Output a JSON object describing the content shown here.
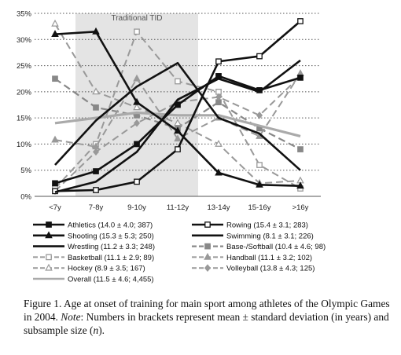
{
  "chart_data": {
    "type": "line",
    "title": "",
    "xlabel": "",
    "ylabel": "",
    "categories": [
      "<7y",
      "7-8y",
      "9-10y",
      "11-12y",
      "13-14y",
      "15-16y",
      ">16y"
    ],
    "ylim": [
      0,
      35
    ],
    "yticks": [
      "0%",
      "5%",
      "10%",
      "15%",
      "20%",
      "25%",
      "30%",
      "35%"
    ],
    "grid": "horizontal dotted",
    "annotation": "Traditional TID",
    "shaded_region": [
      "7-8y",
      "11-12y"
    ],
    "legend_position": "bottom",
    "series": [
      {
        "name": "Athletics (14.0 ± 4.0; 387)",
        "values": [
          2.5,
          4.8,
          10.0,
          17.5,
          23.0,
          20.3,
          22.7
        ],
        "color": "#111111",
        "width": 2.6,
        "dash": "none",
        "marker": "square-filled"
      },
      {
        "name": "Rowing (15.4 ± 3.1; 283)",
        "values": [
          1.0,
          1.2,
          2.8,
          9.0,
          25.8,
          26.8,
          33.5
        ],
        "color": "#111111",
        "width": 2.6,
        "dash": "none",
        "marker": "square-open"
      },
      {
        "name": "Shooting (15.3 ± 5.3; 250)",
        "values": [
          31.0,
          31.5,
          18.0,
          12.5,
          4.5,
          2.2,
          2.0
        ],
        "color": "#111111",
        "width": 2.6,
        "dash": "none",
        "marker": "triangle-filled"
      },
      {
        "name": "Swimming (8.1 ± 3.1; 226)",
        "values": [
          6.0,
          14.5,
          21.0,
          25.5,
          15.0,
          12.0,
          5.0
        ],
        "color": "#111111",
        "width": 2.6,
        "dash": "none",
        "marker": "none"
      },
      {
        "name": "Wrestling (11.2 ± 3.3; 248)",
        "values": [
          0.8,
          2.8,
          8.5,
          18.5,
          22.5,
          20.0,
          26.0
        ],
        "color": "#111111",
        "width": 2.6,
        "dash": "none",
        "marker": "none"
      },
      {
        "name": "Base-/Softball (10.4 ± 4.6; 98)",
        "values": [
          22.5,
          17.0,
          15.5,
          13.0,
          18.0,
          13.0,
          9.0
        ],
        "color": "#888888",
        "width": 2.2,
        "dash": "9 5",
        "marker": "square-filled"
      },
      {
        "name": "Basketball (11.1 ± 2.9; 89)",
        "values": [
          1.5,
          10.0,
          31.5,
          22.0,
          20.0,
          6.0,
          1.5
        ],
        "color": "#999999",
        "width": 2.0,
        "dash": "9 5",
        "marker": "square-open"
      },
      {
        "name": "Handball (11.1 ± 3.2; 102)",
        "values": [
          10.8,
          9.5,
          22.5,
          11.0,
          15.0,
          11.5,
          23.5
        ],
        "color": "#999999",
        "width": 2.0,
        "dash": "9 5",
        "marker": "triangle-filled"
      },
      {
        "name": "Hockey (8.9 ± 3.5; 167)",
        "values": [
          33.0,
          20.0,
          17.0,
          14.0,
          10.0,
          2.5,
          3.0
        ],
        "color": "#999999",
        "width": 2.0,
        "dash": "9 5",
        "marker": "triangle-open"
      },
      {
        "name": "Volleyball (13.8 ± 4.3; 125)",
        "values": [
          1.0,
          8.5,
          14.0,
          18.0,
          19.0,
          15.5,
          23.0
        ],
        "color": "#999999",
        "width": 2.0,
        "dash": "9 5",
        "marker": "diamond"
      },
      {
        "name": "Overall (11.5 ± 4.6; 4,455)",
        "values": [
          14.0,
          15.0,
          16.0,
          15.5,
          15.5,
          13.5,
          11.5
        ],
        "color": "#aaaaaa",
        "width": 3.2,
        "dash": "none",
        "marker": "none"
      }
    ]
  },
  "caption": {
    "label": "Figure 1.",
    "text": " Age at onset of training for main sport among athletes of the Olympic Games in 2004. ",
    "note_label": "Note",
    "note_text": ": Numbers in brackets represent mean ± standard deviation (in years) and subsample size (",
    "n_symbol": "n",
    "end": ")."
  }
}
